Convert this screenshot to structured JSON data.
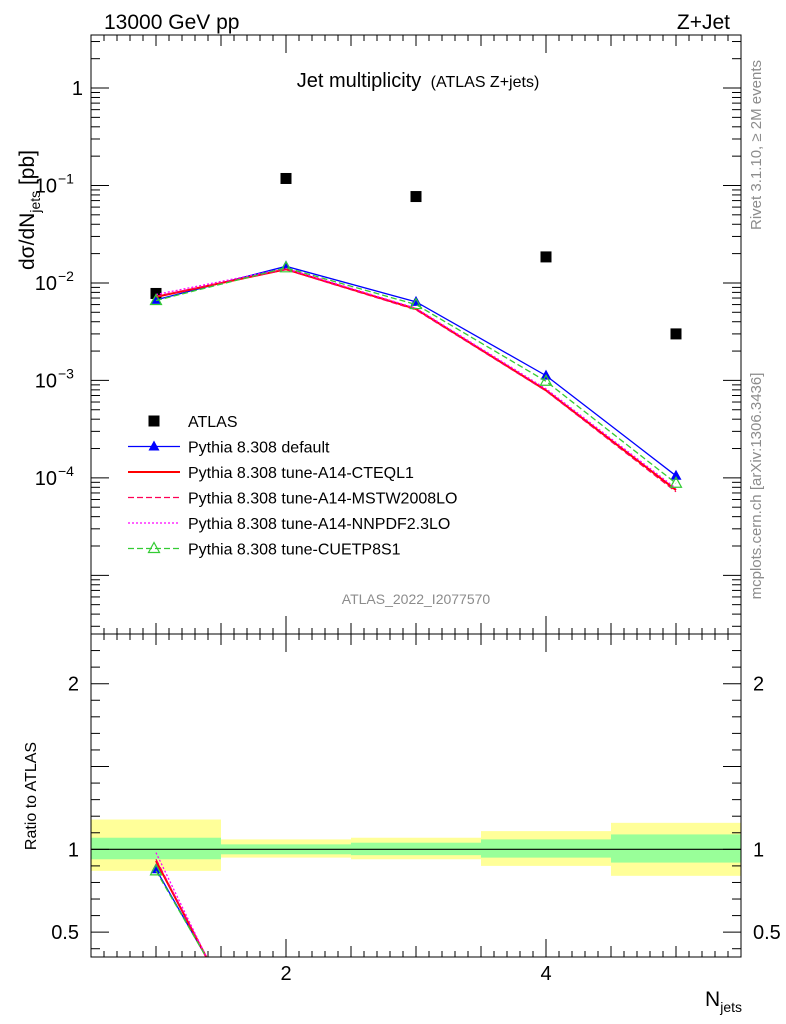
{
  "header": {
    "left": "13000 GeV pp",
    "right": "Z+Jet"
  },
  "side_text": {
    "rivet": "Rivet 3.1.10, ≥ 2M events",
    "mcplots": "mcplots.cern.ch [arXiv:1306.3436]"
  },
  "watermark": "ATLAS_2022_I2077570",
  "chart_data": [
    {
      "type": "scatter",
      "title": "Jet multiplicity",
      "subtitle": "(ATLAS Z+jets)",
      "ylabel_main": "dσ/dN",
      "ylabel_sub": "jets",
      "ylabel_unit": " [pb]",
      "xlabel_main": "N",
      "xlabel_sub": "jets",
      "yscale": "log",
      "xlim": [
        0.5,
        5.5
      ],
      "ylim": [
        2.5e-06,
        3.5
      ],
      "yticks": [
        {
          "value": 1,
          "mant": "1",
          "exp": ""
        },
        {
          "value": 0.1,
          "mant": "10",
          "exp": "−1"
        },
        {
          "value": 0.01,
          "mant": "10",
          "exp": "−2"
        },
        {
          "value": 0.001,
          "mant": "10",
          "exp": "−3"
        },
        {
          "value": 0.0001,
          "mant": "10",
          "exp": "−4"
        }
      ],
      "legend_position": "lower-left",
      "series": [
        {
          "name": "ATLAS",
          "color": "#000000",
          "marker": "square",
          "x": [
            1,
            2,
            3,
            4,
            5
          ],
          "y": [
            0.0078,
            0.118,
            0.077,
            0.0185,
            0.003
          ]
        },
        {
          "name": "Pythia 8.308 default",
          "color": "#0000ff",
          "style": "solid",
          "marker": "triangle",
          "x": [
            1,
            2,
            3,
            4,
            5
          ],
          "y": [
            0.0067,
            0.0148,
            0.0064,
            0.00112,
            0.000105
          ]
        },
        {
          "name": "Pythia 8.308 tune-A14-CTEQL1",
          "color": "#ff0000",
          "style": "solid",
          "marker": "none",
          "x": [
            1,
            2,
            3,
            4,
            5
          ],
          "y": [
            0.0072,
            0.0138,
            0.0054,
            0.00079,
            7.5e-05
          ]
        },
        {
          "name": "Pythia 8.308 tune-A14-MSTW2008LO",
          "color": "#ff0055",
          "style": "dashed",
          "marker": "none",
          "x": [
            1,
            2,
            3,
            4,
            5
          ],
          "y": [
            0.0073,
            0.0137,
            0.0053,
            0.00078,
            7.2e-05
          ]
        },
        {
          "name": "Pythia 8.308 tune-A14-NNPDF2.3LO",
          "color": "#ff00ff",
          "style": "dotted",
          "marker": "none",
          "x": [
            1,
            2,
            3,
            4,
            5
          ],
          "y": [
            0.0076,
            0.0141,
            0.0055,
            0.00082,
            7.8e-05
          ]
        },
        {
          "name": "Pythia 8.308 tune-CUETP8S1",
          "color": "#33cc33",
          "style": "dashed",
          "marker": "open-triangle",
          "x": [
            1,
            2,
            3,
            4,
            5
          ],
          "y": [
            0.0066,
            0.0143,
            0.006,
            0.00098,
            8.8e-05
          ]
        }
      ]
    },
    {
      "type": "line",
      "ylabel": "Ratio to ATLAS",
      "yscale": "linear",
      "xlim": [
        0.5,
        5.5
      ],
      "ylim": [
        0.35,
        2.3
      ],
      "yticks": [
        0.5,
        1,
        2
      ],
      "xticks": [
        2,
        4
      ],
      "reference_value": 1,
      "bands": {
        "edges": [
          0.5,
          1.5,
          2.5,
          3.5,
          4.5,
          5.5
        ],
        "outer_low": [
          0.87,
          0.95,
          0.94,
          0.9,
          0.84
        ],
        "outer_high": [
          1.18,
          1.06,
          1.07,
          1.11,
          1.16
        ],
        "inner_low": [
          0.94,
          0.97,
          0.965,
          0.95,
          0.92
        ],
        "inner_high": [
          1.07,
          1.03,
          1.04,
          1.06,
          1.09
        ],
        "outer_color": "#ffff99",
        "inner_color": "#99ff99"
      },
      "series": [
        {
          "name": "Pythia 8.308 default",
          "x": [
            1,
            1.4
          ],
          "y": [
            0.88,
            0.33
          ]
        },
        {
          "name": "Pythia 8.308 tune-A14-CTEQL1",
          "x": [
            1,
            1.4
          ],
          "y": [
            0.93,
            0.33
          ]
        },
        {
          "name": "Pythia 8.308 tune-A14-MSTW2008LO",
          "x": [
            1,
            1.4
          ],
          "y": [
            0.94,
            0.33
          ]
        },
        {
          "name": "Pythia 8.308 tune-A14-NNPDF2.3LO",
          "x": [
            1,
            1.4
          ],
          "y": [
            0.98,
            0.33
          ]
        },
        {
          "name": "Pythia 8.308 tune-CUETP8S1",
          "x": [
            1,
            1.4
          ],
          "y": [
            0.87,
            0.33
          ]
        }
      ]
    }
  ]
}
